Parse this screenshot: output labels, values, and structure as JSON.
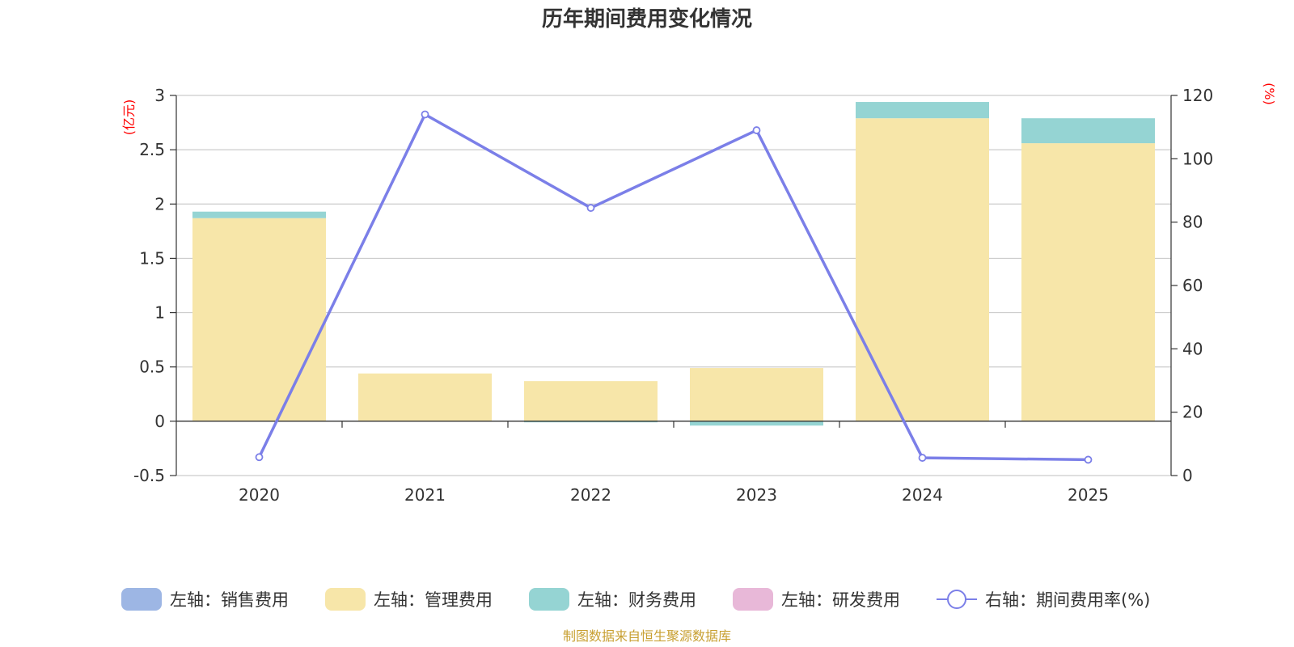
{
  "chart_data": {
    "type": "bar",
    "title": "历年期间费用变化情况",
    "categories": [
      "2020",
      "2021",
      "2022",
      "2023",
      "2024",
      "2025"
    ],
    "left_axis": {
      "unit": "(亿元)",
      "ylim": [
        -0.5,
        3
      ],
      "ticks": [
        "3",
        "2.5",
        "2",
        "1.5",
        "1",
        "0.5",
        "0",
        "-0.5"
      ]
    },
    "right_axis": {
      "unit": "(%)",
      "ylim": [
        0,
        120
      ],
      "ticks": [
        "120",
        "100",
        "80",
        "60",
        "40",
        "20",
        "0"
      ]
    },
    "series": [
      {
        "name": "左轴：销售费用",
        "axis": "left",
        "kind": "bar",
        "color": "#9db6e4",
        "values": [
          0,
          0,
          0,
          0,
          0,
          0
        ]
      },
      {
        "name": "左轴：管理费用",
        "axis": "left",
        "kind": "bar",
        "color": "#f7e6a9",
        "values": [
          1.87,
          0.44,
          0.37,
          0.49,
          2.79,
          2.56
        ]
      },
      {
        "name": "左轴：财务费用",
        "axis": "left",
        "kind": "bar",
        "color": "#95d4d3",
        "values": [
          0.06,
          0.0,
          -0.01,
          -0.04,
          0.15,
          0.23
        ]
      },
      {
        "name": "左轴：研发费用",
        "axis": "left",
        "kind": "bar",
        "color": "#e8b8d8",
        "values": [
          0,
          0,
          0,
          0,
          0,
          0
        ]
      },
      {
        "name": "右轴：期间费用率(%)",
        "axis": "right",
        "kind": "line",
        "color": "#7b7fe8",
        "values": [
          5.8,
          114.0,
          84.5,
          109.0,
          5.6,
          5.0
        ]
      }
    ],
    "legend_position": "bottom"
  },
  "source_note": "制图数据来自恒生聚源数据库"
}
